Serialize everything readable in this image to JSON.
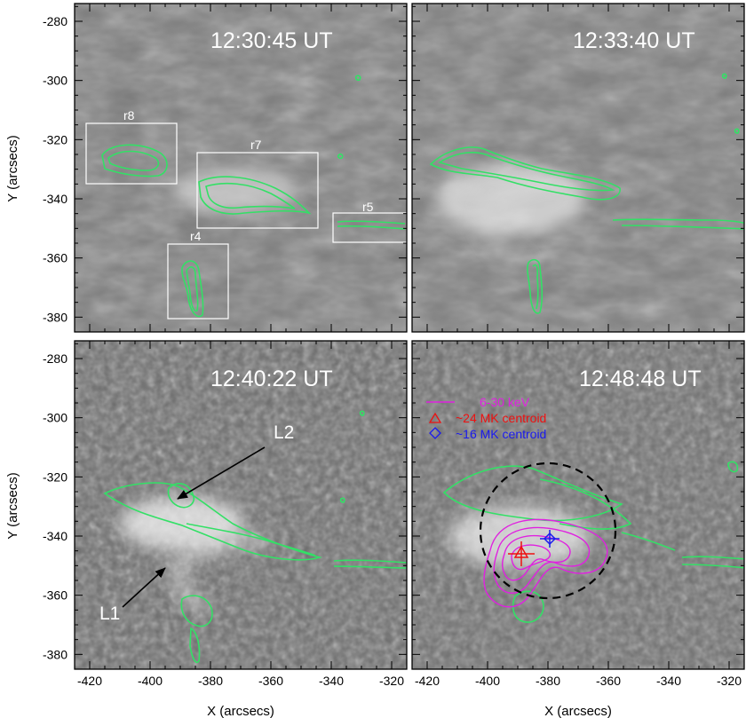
{
  "figure": {
    "x_axis_title": "X (arcsecs)",
    "y_axis_title": "Y (arcsecs)",
    "x_ticks": [
      "-420",
      "-400",
      "-380",
      "-360",
      "-340",
      "-320"
    ],
    "y_ticks": [
      "-280",
      "-300",
      "-320",
      "-340",
      "-360",
      "-380"
    ],
    "x_range": [
      -425,
      -315
    ],
    "y_range": [
      -385,
      -274
    ],
    "contour_color": "#33e066",
    "panels": [
      {
        "timestamp": "12:30:45 UT"
      },
      {
        "timestamp": "12:33:40 UT"
      },
      {
        "timestamp": "12:40:22 UT"
      },
      {
        "timestamp": "12:48:48 UT"
      }
    ],
    "boxes": [
      {
        "label": "r8"
      },
      {
        "label": "r7"
      },
      {
        "label": "r5"
      },
      {
        "label": "r4"
      }
    ],
    "loop_labels": {
      "l1": "L1",
      "l2": "L2"
    },
    "legend": [
      {
        "text": "6-30 keV",
        "color": "#e020e0",
        "symbol": "line"
      },
      {
        "text": "~24 MK centroid",
        "color": "#ee1111",
        "symbol": "triangle"
      },
      {
        "text": "~16 MK centroid",
        "color": "#1a1aee",
        "symbol": "diamond"
      }
    ]
  }
}
